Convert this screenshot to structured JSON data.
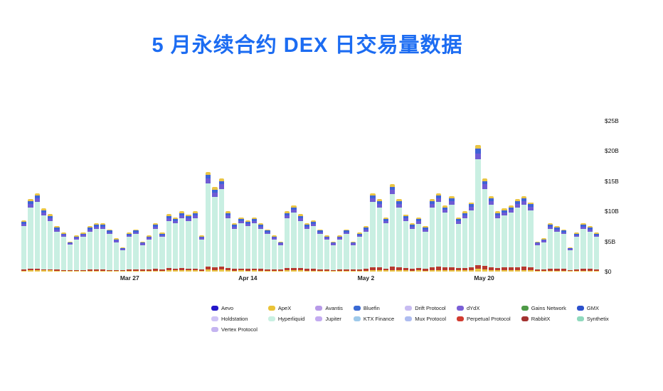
{
  "title": "5 月永续合约 DEX 日交易量数据",
  "chart_data": {
    "type": "bar",
    "stacked": true,
    "title": "5 月永续合约 DEX 日交易量数据",
    "unit": "USD billions per day",
    "grid": false,
    "legend_position": "bottom",
    "y_axis": {
      "side": "right",
      "max_billions": 25,
      "ticks": [
        {
          "label": "$0",
          "value": 0
        },
        {
          "label": "$5B",
          "value": 5
        },
        {
          "label": "$10B",
          "value": 10
        },
        {
          "label": "$15B",
          "value": 15
        },
        {
          "label": "$20B",
          "value": 20
        },
        {
          "label": "$25B",
          "value": 25
        }
      ]
    },
    "x_ticks": [
      {
        "label": "Mar 27",
        "index": 16
      },
      {
        "label": "Apr 14",
        "index": 34
      },
      {
        "label": "May 2",
        "index": 52
      },
      {
        "label": "May 20",
        "index": 70
      }
    ],
    "bar_totals_billions": [
      8.5,
      12,
      13,
      10.5,
      9.5,
      7.5,
      6.5,
      5,
      6,
      6.5,
      7.5,
      8,
      8,
      7,
      5.5,
      4,
      6.5,
      7,
      5,
      6,
      8,
      6.5,
      9.5,
      9,
      10,
      9.5,
      10,
      6,
      16.5,
      14,
      15.5,
      10,
      8,
      9,
      8.5,
      9,
      8,
      7,
      6,
      5,
      10,
      11,
      9.5,
      8,
      8.5,
      7,
      6,
      5,
      6,
      7,
      5,
      6.5,
      7.5,
      13,
      12,
      9,
      14.5,
      12,
      9.5,
      8,
      9,
      7.5,
      12,
      13,
      11,
      12.5,
      9,
      10,
      11.5,
      21,
      15.5,
      12.5,
      10,
      10.5,
      11,
      12,
      12.5,
      11.5,
      5,
      5.5,
      8,
      7.5,
      7,
      4,
      6.5,
      8,
      7.5,
      6.5
    ],
    "red_segment_billions": [
      0.2,
      0.25,
      0.25,
      0.2,
      0.2,
      0.15,
      0.1,
      0.1,
      0.1,
      0.1,
      0.15,
      0.15,
      0.15,
      0.1,
      0.1,
      0.1,
      0.2,
      0.25,
      0.2,
      0.2,
      0.3,
      0.25,
      0.35,
      0.3,
      0.35,
      0.3,
      0.3,
      0.2,
      0.5,
      0.45,
      0.5,
      0.35,
      0.3,
      0.35,
      0.3,
      0.3,
      0.3,
      0.25,
      0.2,
      0.2,
      0.35,
      0.4,
      0.35,
      0.3,
      0.3,
      0.25,
      0.2,
      0.15,
      0.2,
      0.25,
      0.2,
      0.25,
      0.3,
      0.5,
      0.45,
      0.35,
      0.55,
      0.5,
      0.4,
      0.35,
      0.4,
      0.35,
      0.5,
      0.55,
      0.45,
      0.5,
      0.4,
      0.45,
      0.5,
      0.7,
      0.6,
      0.5,
      0.45,
      0.45,
      0.5,
      0.5,
      0.55,
      0.5,
      0.2,
      0.2,
      0.35,
      0.3,
      0.3,
      0.15,
      0.25,
      0.3,
      0.3,
      0.25
    ],
    "stack_fractions": {
      "apex_bottom": 0.02,
      "dydx_purple": 0.05,
      "gmx_blue": 0.035,
      "apex_top": 0.03
    },
    "colors": {
      "hyperliquid_teal": "#c9efe2",
      "dydx_purple": "#6f5bd4",
      "gmx_blue": "#3e63d6",
      "apex_yellow": "#e9c545",
      "perp_red": "#b8392f"
    }
  },
  "legend": {
    "items": [
      {
        "label": "Aevo",
        "color": "#2417c9"
      },
      {
        "label": "ApeX",
        "color": "#eac337"
      },
      {
        "label": "Avantis",
        "color": "#b79ae8"
      },
      {
        "label": "Bluefin",
        "color": "#3a6ad4"
      },
      {
        "label": "Drift Protocol",
        "color": "#c8bcf2"
      },
      {
        "label": "dYdX",
        "color": "#7a5fd6"
      },
      {
        "label": "Gains Network",
        "color": "#4e9a47"
      },
      {
        "label": "GMX",
        "color": "#2b50cc"
      },
      {
        "label": "Holdstation",
        "color": "#cfc3f5"
      },
      {
        "label": "Hyperliquid",
        "color": "#c9f0e2"
      },
      {
        "label": "Jupiter",
        "color": "#c3abf0"
      },
      {
        "label": "KTX Finance",
        "color": "#9ec9ea"
      },
      {
        "label": "Mux Protocol",
        "color": "#aebcf0"
      },
      {
        "label": "Perpetual Protocol",
        "color": "#d13b30"
      },
      {
        "label": "RabbitX",
        "color": "#a33230"
      },
      {
        "label": "Synthetix",
        "color": "#8fd9bd"
      },
      {
        "label": "Vertex Protocol",
        "color": "#c4b4f0"
      }
    ]
  }
}
